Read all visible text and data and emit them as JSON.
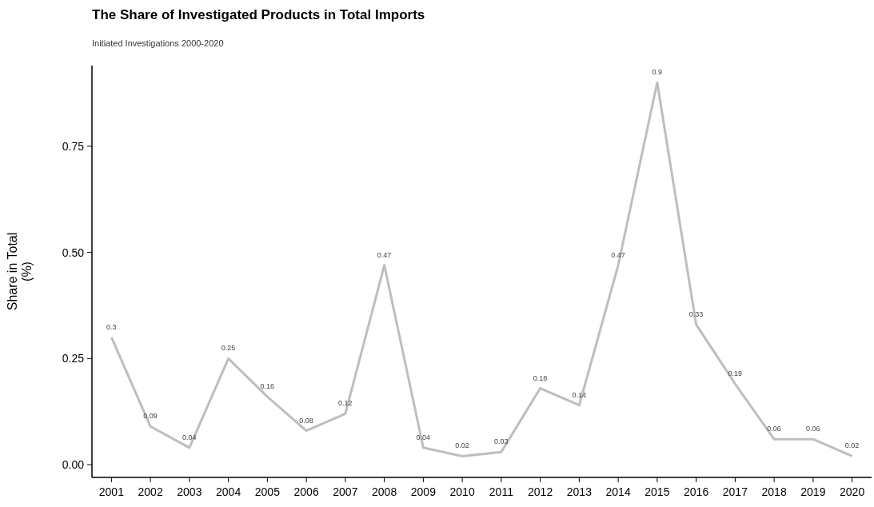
{
  "chart_data": {
    "type": "line",
    "title": "The Share of Investigated Products in Total Imports",
    "subtitle": "Initiated Investigations 2000-2020",
    "ylabel": "Share in Total\n(%)",
    "categories": [
      "2001",
      "2002",
      "2003",
      "2004",
      "2005",
      "2006",
      "2007",
      "2008",
      "2009",
      "2010",
      "2011",
      "2012",
      "2013",
      "2014",
      "2015",
      "2016",
      "2017",
      "2018",
      "2019",
      "2020"
    ],
    "series": [
      {
        "color": "#bebebe",
        "values": [
          0.3,
          0.09,
          0.04,
          0.25,
          0.16,
          0.08,
          0.12,
          0.47,
          0.04,
          0.02,
          0.03,
          0.18,
          0.14,
          0.47,
          0.9,
          0.33,
          0.19,
          0.06,
          0.06,
          0.02
        ]
      }
    ],
    "ylim": [
      -0.03,
      0.94
    ],
    "yticks": [
      {
        "value": 0,
        "label": "0.00"
      },
      {
        "value": 0.25,
        "label": "0.25"
      },
      {
        "value": 0.5,
        "label": "0.50"
      },
      {
        "value": 0.75,
        "label": "0.75"
      }
    ],
    "data_labels": true
  }
}
